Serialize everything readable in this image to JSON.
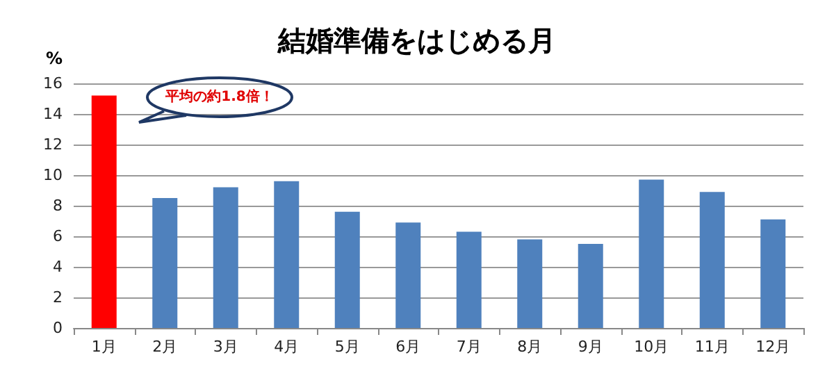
{
  "chart_data": {
    "type": "bar",
    "title": "結婚準備をはじめる月",
    "ylabel": "%",
    "categories": [
      "1月",
      "2月",
      "3月",
      "4月",
      "5月",
      "6月",
      "7月",
      "8月",
      "9月",
      "10月",
      "11月",
      "12月"
    ],
    "values": [
      15.2,
      8.5,
      9.2,
      9.6,
      7.6,
      6.9,
      6.3,
      5.8,
      5.5,
      9.7,
      8.9,
      7.1
    ],
    "colors": [
      "#ff0000",
      "#4f81bd",
      "#4f81bd",
      "#4f81bd",
      "#4f81bd",
      "#4f81bd",
      "#4f81bd",
      "#4f81bd",
      "#4f81bd",
      "#4f81bd",
      "#4f81bd",
      "#4f81bd"
    ],
    "ylim": [
      0,
      16
    ],
    "yticks": [
      0,
      2,
      4,
      6,
      8,
      10,
      12,
      14,
      16
    ],
    "grid": "y",
    "annotations": [
      "平均の約1.8倍！"
    ]
  }
}
